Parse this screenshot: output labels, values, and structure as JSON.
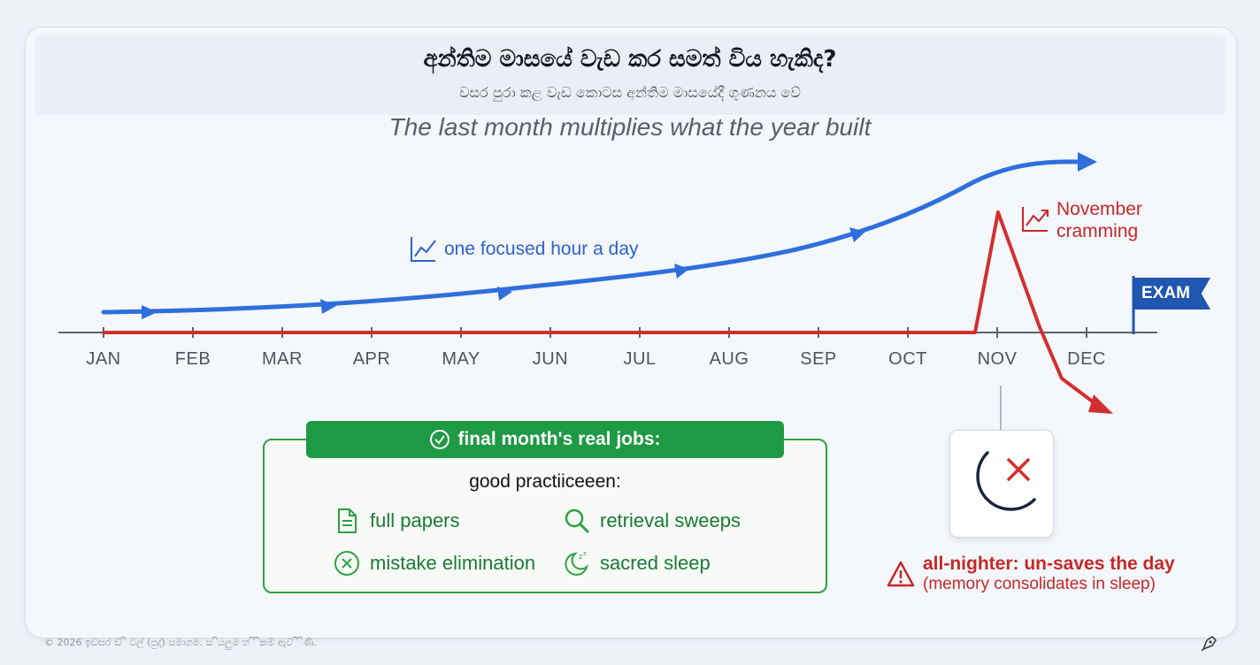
{
  "title": "අන්තිම මාසයේ වැඩ කර සමත් විය හැකිද?",
  "subtitle_si": "වසර පුරා කළ වැඩ කොටස අන්තිම මාසයේදී ගුණනය වේ",
  "subtitle_en": "The last month multiplies what the year built",
  "chart_data": {
    "type": "line",
    "categories": [
      "JAN",
      "FEB",
      "MAR",
      "APR",
      "MAY",
      "JUN",
      "JUL",
      "AUG",
      "SEP",
      "OCT",
      "NOV",
      "DEC"
    ],
    "series": [
      {
        "label": "one focused hour a day",
        "color": "#2f6fdc"
      },
      {
        "label": "November cramming",
        "color": "#d32f2f"
      }
    ],
    "marker": "EXAM"
  },
  "blue_label": "one focused hour a day",
  "red_label_line1": "November",
  "red_label_line2": "cramming",
  "exam_label": "EXAM",
  "jobs": {
    "header": "final month's real jobs:",
    "intro": "good practiiceeen:",
    "items": [
      "full papers",
      "retrieval sweeps",
      "mistake elimination",
      "sacred sleep"
    ]
  },
  "warning": {
    "title": "all-nighter: un-saves the day",
    "subtitle": "(memory consolidates in sleep)"
  },
  "footer": "© 2026 ඉඩසර ඩි ි ටල් (පුද්) සමාගම. ස ියලුම හ ි ිකම් ඇව ි ිණි."
}
